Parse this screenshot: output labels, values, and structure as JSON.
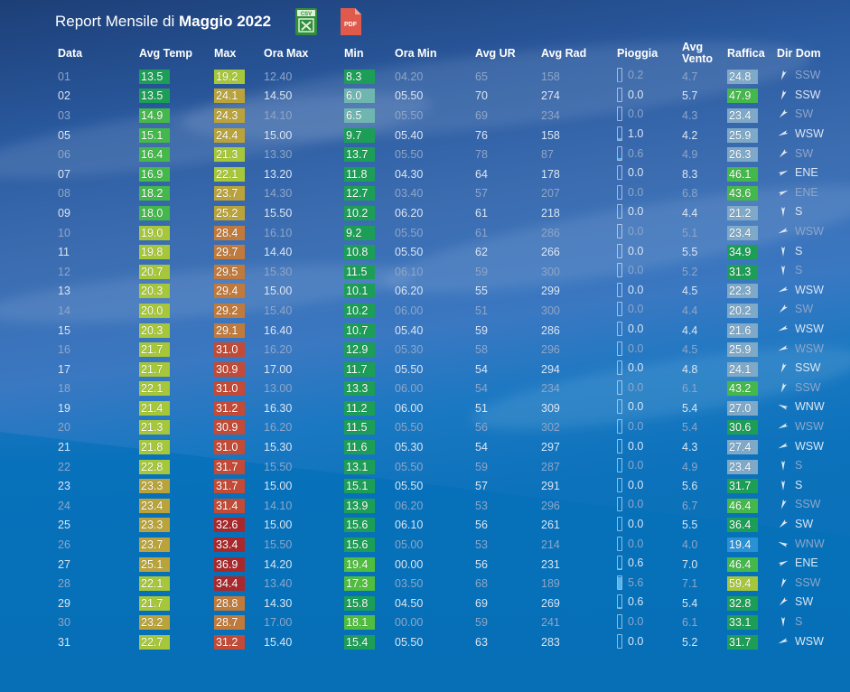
{
  "header": {
    "title_prefix": "Report Mensile di",
    "title_bold": "Maggio 2022",
    "csv_icon_label": "CSV",
    "pdf_icon_label": "PDF"
  },
  "columns": [
    "Data",
    "Avg Temp",
    "Max",
    "Ora Max",
    "Min",
    "Ora Min",
    "Avg UR",
    "Avg Rad",
    "Pioggia",
    "Avg Vento",
    "Raffica",
    "Dir Dom"
  ],
  "colors": {
    "temp_green_dark": "#1d9e57",
    "temp_green": "#45b84b",
    "temp_yellow_green": "#a6c73a",
    "temp_olive": "#b9a33a",
    "temp_orange": "#c07a3c",
    "temp_red": "#c24a36",
    "temp_dark_red": "#a8282b",
    "wind_light": "#7fa9c8",
    "wind_blue": "#2b91d6",
    "rain_fill": "#56b4e9"
  },
  "rows": [
    {
      "day": "01",
      "avg_temp": "13.5",
      "max": "19.2",
      "ora_max": "12.40",
      "min": "8.3",
      "ora_min": "04.20",
      "ur": "65",
      "rad": "158",
      "rain": "0.2",
      "vento": "4.7",
      "raffica": "24.8",
      "dir": "SSW",
      "dim": true
    },
    {
      "day": "02",
      "avg_temp": "13.5",
      "max": "24.1",
      "ora_max": "14.50",
      "min": "6.0",
      "ora_min": "05.50",
      "ur": "70",
      "rad": "274",
      "rain": "0.0",
      "vento": "5.7",
      "raffica": "47.9",
      "dir": "SSW",
      "dim": false
    },
    {
      "day": "03",
      "avg_temp": "14.9",
      "max": "24.3",
      "ora_max": "14.10",
      "min": "6.5",
      "ora_min": "05.50",
      "ur": "69",
      "rad": "234",
      "rain": "0.0",
      "vento": "4.3",
      "raffica": "23.4",
      "dir": "SW",
      "dim": true
    },
    {
      "day": "05",
      "avg_temp": "15.1",
      "max": "24.4",
      "ora_max": "15.00",
      "min": "9.7",
      "ora_min": "05.40",
      "ur": "76",
      "rad": "158",
      "rain": "1.0",
      "vento": "4.2",
      "raffica": "25.9",
      "dir": "WSW",
      "dim": false
    },
    {
      "day": "06",
      "avg_temp": "16.4",
      "max": "21.3",
      "ora_max": "13.30",
      "min": "13.7",
      "ora_min": "05.50",
      "ur": "78",
      "rad": "87",
      "rain": "0.6",
      "vento": "4.9",
      "raffica": "26.3",
      "dir": "SW",
      "dim": true
    },
    {
      "day": "07",
      "avg_temp": "16.9",
      "max": "22.1",
      "ora_max": "13.20",
      "min": "11.8",
      "ora_min": "04.30",
      "ur": "64",
      "rad": "178",
      "rain": "0.0",
      "vento": "8.3",
      "raffica": "46.1",
      "dir": "ENE",
      "dim": false
    },
    {
      "day": "08",
      "avg_temp": "18.2",
      "max": "23.7",
      "ora_max": "14.30",
      "min": "12.7",
      "ora_min": "03.40",
      "ur": "57",
      "rad": "207",
      "rain": "0.0",
      "vento": "6.8",
      "raffica": "43.6",
      "dir": "ENE",
      "dim": true
    },
    {
      "day": "09",
      "avg_temp": "18.0",
      "max": "25.2",
      "ora_max": "15.50",
      "min": "10.2",
      "ora_min": "06.20",
      "ur": "61",
      "rad": "218",
      "rain": "0.0",
      "vento": "4.4",
      "raffica": "21.2",
      "dir": "S",
      "dim": false
    },
    {
      "day": "10",
      "avg_temp": "19.0",
      "max": "28.4",
      "ora_max": "16.10",
      "min": "9.2",
      "ora_min": "05.50",
      "ur": "61",
      "rad": "286",
      "rain": "0.0",
      "vento": "5.1",
      "raffica": "23.4",
      "dir": "WSW",
      "dim": true
    },
    {
      "day": "11",
      "avg_temp": "19.8",
      "max": "29.7",
      "ora_max": "14.40",
      "min": "10.8",
      "ora_min": "05.50",
      "ur": "62",
      "rad": "266",
      "rain": "0.0",
      "vento": "5.5",
      "raffica": "34.9",
      "dir": "S",
      "dim": false
    },
    {
      "day": "12",
      "avg_temp": "20.7",
      "max": "29.5",
      "ora_max": "15.30",
      "min": "11.5",
      "ora_min": "06.10",
      "ur": "59",
      "rad": "300",
      "rain": "0.0",
      "vento": "5.2",
      "raffica": "31.3",
      "dir": "S",
      "dim": true
    },
    {
      "day": "13",
      "avg_temp": "20.3",
      "max": "29.4",
      "ora_max": "15.00",
      "min": "10.1",
      "ora_min": "06.20",
      "ur": "55",
      "rad": "299",
      "rain": "0.0",
      "vento": "4.5",
      "raffica": "22.3",
      "dir": "WSW",
      "dim": false
    },
    {
      "day": "14",
      "avg_temp": "20.0",
      "max": "29.2",
      "ora_max": "15.40",
      "min": "10.2",
      "ora_min": "06.00",
      "ur": "51",
      "rad": "300",
      "rain": "0.0",
      "vento": "4.4",
      "raffica": "20.2",
      "dir": "SW",
      "dim": true
    },
    {
      "day": "15",
      "avg_temp": "20.3",
      "max": "29.1",
      "ora_max": "16.40",
      "min": "10.7",
      "ora_min": "05.40",
      "ur": "59",
      "rad": "286",
      "rain": "0.0",
      "vento": "4.4",
      "raffica": "21.6",
      "dir": "WSW",
      "dim": false
    },
    {
      "day": "16",
      "avg_temp": "21.7",
      "max": "31.0",
      "ora_max": "16.20",
      "min": "12.9",
      "ora_min": "05.30",
      "ur": "58",
      "rad": "296",
      "rain": "0.0",
      "vento": "4.5",
      "raffica": "25.9",
      "dir": "WSW",
      "dim": true
    },
    {
      "day": "17",
      "avg_temp": "21.7",
      "max": "30.9",
      "ora_max": "17.00",
      "min": "11.7",
      "ora_min": "05.50",
      "ur": "54",
      "rad": "294",
      "rain": "0.0",
      "vento": "4.8",
      "raffica": "24.1",
      "dir": "SSW",
      "dim": false
    },
    {
      "day": "18",
      "avg_temp": "22.1",
      "max": "31.0",
      "ora_max": "13.00",
      "min": "13.3",
      "ora_min": "06.00",
      "ur": "54",
      "rad": "234",
      "rain": "0.0",
      "vento": "6.1",
      "raffica": "43.2",
      "dir": "SSW",
      "dim": true
    },
    {
      "day": "19",
      "avg_temp": "21.4",
      "max": "31.2",
      "ora_max": "16.30",
      "min": "11.2",
      "ora_min": "06.00",
      "ur": "51",
      "rad": "309",
      "rain": "0.0",
      "vento": "5.4",
      "raffica": "27.0",
      "dir": "WNW",
      "dim": false
    },
    {
      "day": "20",
      "avg_temp": "21.3",
      "max": "30.9",
      "ora_max": "16.20",
      "min": "11.5",
      "ora_min": "05.50",
      "ur": "56",
      "rad": "302",
      "rain": "0.0",
      "vento": "5.4",
      "raffica": "30.6",
      "dir": "WSW",
      "dim": true
    },
    {
      "day": "21",
      "avg_temp": "21.8",
      "max": "31.0",
      "ora_max": "15.30",
      "min": "11.6",
      "ora_min": "05.30",
      "ur": "54",
      "rad": "297",
      "rain": "0.0",
      "vento": "4.3",
      "raffica": "27.4",
      "dir": "WSW",
      "dim": false
    },
    {
      "day": "22",
      "avg_temp": "22.8",
      "max": "31.7",
      "ora_max": "15.50",
      "min": "13.1",
      "ora_min": "05.50",
      "ur": "59",
      "rad": "287",
      "rain": "0.0",
      "vento": "4.9",
      "raffica": "23.4",
      "dir": "S",
      "dim": true
    },
    {
      "day": "23",
      "avg_temp": "23.3",
      "max": "31.7",
      "ora_max": "15.00",
      "min": "15.1",
      "ora_min": "05.50",
      "ur": "57",
      "rad": "291",
      "rain": "0.0",
      "vento": "5.6",
      "raffica": "31.7",
      "dir": "S",
      "dim": false
    },
    {
      "day": "24",
      "avg_temp": "23.4",
      "max": "31.4",
      "ora_max": "14.10",
      "min": "13.9",
      "ora_min": "06.20",
      "ur": "53",
      "rad": "296",
      "rain": "0.0",
      "vento": "6.7",
      "raffica": "46.4",
      "dir": "SSW",
      "dim": true
    },
    {
      "day": "25",
      "avg_temp": "23.3",
      "max": "32.6",
      "ora_max": "15.00",
      "min": "15.6",
      "ora_min": "06.10",
      "ur": "56",
      "rad": "261",
      "rain": "0.0",
      "vento": "5.5",
      "raffica": "36.4",
      "dir": "SW",
      "dim": false
    },
    {
      "day": "26",
      "avg_temp": "23.7",
      "max": "33.4",
      "ora_max": "15.50",
      "min": "15.6",
      "ora_min": "05.00",
      "ur": "53",
      "rad": "214",
      "rain": "0.0",
      "vento": "4.0",
      "raffica": "19.4",
      "dir": "WNW",
      "dim": true
    },
    {
      "day": "27",
      "avg_temp": "25.1",
      "max": "36.9",
      "ora_max": "14.20",
      "min": "19.4",
      "ora_min": "00.00",
      "ur": "56",
      "rad": "231",
      "rain": "0.6",
      "vento": "7.0",
      "raffica": "46.4",
      "dir": "ENE",
      "dim": false
    },
    {
      "day": "28",
      "avg_temp": "22.1",
      "max": "34.4",
      "ora_max": "13.40",
      "min": "17.3",
      "ora_min": "03.50",
      "ur": "68",
      "rad": "189",
      "rain": "5.6",
      "vento": "7.1",
      "raffica": "59.4",
      "dir": "SSW",
      "dim": true
    },
    {
      "day": "29",
      "avg_temp": "21.7",
      "max": "28.8",
      "ora_max": "14.30",
      "min": "15.8",
      "ora_min": "04.50",
      "ur": "69",
      "rad": "269",
      "rain": "0.6",
      "vento": "5.4",
      "raffica": "32.8",
      "dir": "SW",
      "dim": false
    },
    {
      "day": "30",
      "avg_temp": "23.2",
      "max": "28.7",
      "ora_max": "17.00",
      "min": "18.1",
      "ora_min": "00.00",
      "ur": "59",
      "rad": "241",
      "rain": "0.0",
      "vento": "6.1",
      "raffica": "33.1",
      "dir": "S",
      "dim": true
    },
    {
      "day": "31",
      "avg_temp": "22.7",
      "max": "31.2",
      "ora_max": "15.40",
      "min": "15.4",
      "ora_min": "05.50",
      "ur": "63",
      "rad": "283",
      "rain": "0.0",
      "vento": "5.2",
      "raffica": "31.7",
      "dir": "WSW",
      "dim": false
    }
  ]
}
